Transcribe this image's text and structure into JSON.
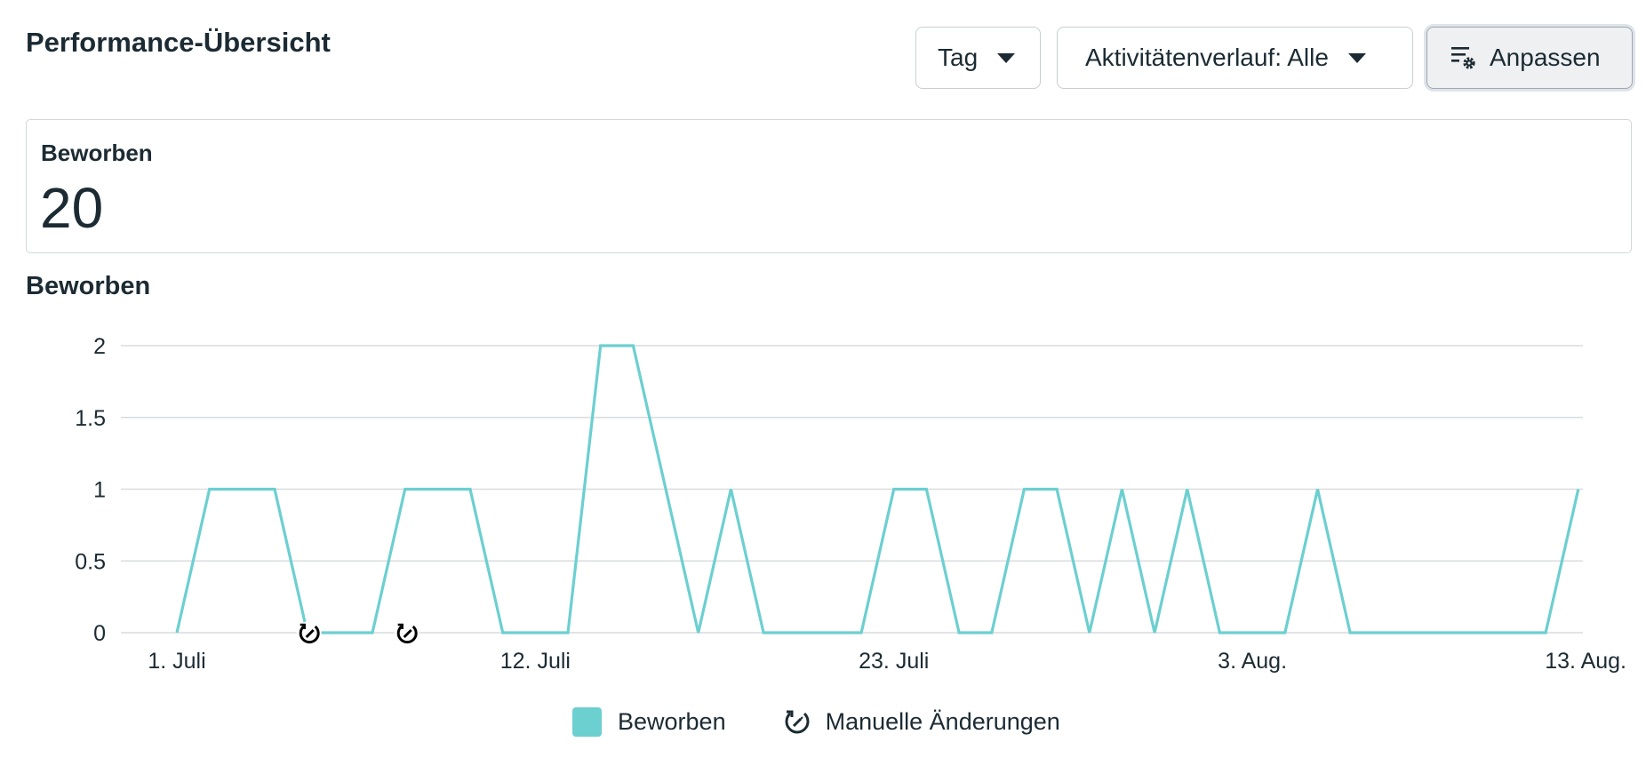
{
  "header": {
    "title": "Performance-Übersicht",
    "period_select": "Tag",
    "activity_select": "Aktivitätenverlauf: Alle",
    "customize_label": "Anpassen"
  },
  "summary": {
    "label": "Beworben",
    "value": "20"
  },
  "chart_section": {
    "title": "Beworben"
  },
  "legend": {
    "series_label": "Beworben",
    "changes_label": "Manuelle Änderungen"
  },
  "colors": {
    "series": "#6ccfd0",
    "grid": "#d9dcdf",
    "text": "#1c2b33"
  },
  "icons": {
    "customize": "filter-settings-icon",
    "dropdown": "caret-down-icon",
    "manual_change": "manual-change-icon"
  },
  "chart_data": {
    "type": "line",
    "title": "Beworben",
    "xlabel": "",
    "ylabel": "",
    "ylim": [
      0,
      2
    ],
    "y_ticks": [
      "0",
      "0.5",
      "1",
      "1.5",
      "2"
    ],
    "x_tick_labels": [
      "1. Juli",
      "12. Juli",
      "23. Juli",
      "3. Aug.",
      "13. Aug."
    ],
    "x_tick_positions": [
      0,
      11,
      22,
      33,
      43
    ],
    "grid": true,
    "legend_position": "bottom",
    "series": [
      {
        "name": "Beworben",
        "color": "#6ccfd0",
        "values": [
          0,
          1,
          1,
          1,
          0,
          0,
          0,
          1,
          1,
          1,
          0,
          0,
          0,
          2,
          2,
          1,
          0,
          1,
          0,
          0,
          0,
          0,
          1,
          1,
          0,
          0,
          1,
          1,
          0,
          1,
          0,
          1,
          0,
          0,
          0,
          1,
          0,
          0,
          0,
          0,
          0,
          0,
          0,
          1
        ]
      }
    ],
    "manual_change_markers": [
      4,
      7
    ]
  }
}
